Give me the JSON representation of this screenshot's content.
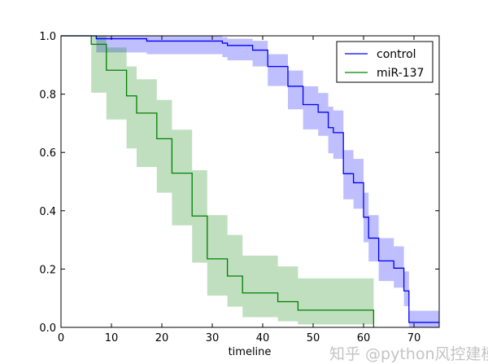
{
  "chart_data": {
    "type": "line",
    "subtype": "kaplan-meier step plot with confidence bands",
    "xlabel": "timeline",
    "ylabel": "",
    "title": "",
    "xlim": [
      0,
      75
    ],
    "ylim": [
      0.0,
      1.0
    ],
    "xticks": [
      "0",
      "10",
      "20",
      "30",
      "40",
      "50",
      "60",
      "70"
    ],
    "yticks": [
      "0.0",
      "0.2",
      "0.4",
      "0.6",
      "0.8",
      "1.0"
    ],
    "grid": false,
    "legend_position": "top-right",
    "series": [
      {
        "name": "control",
        "color": "#0000ff",
        "end_time": 75,
        "steps": [
          [
            0,
            1.0
          ],
          [
            7,
            0.99
          ],
          [
            17,
            0.982
          ],
          [
            32,
            0.975
          ],
          [
            33,
            0.967
          ],
          [
            38,
            0.951
          ],
          [
            41,
            0.895
          ],
          [
            45,
            0.827
          ],
          [
            48,
            0.764
          ],
          [
            51,
            0.738
          ],
          [
            53,
            0.685
          ],
          [
            54,
            0.668
          ],
          [
            56,
            0.527
          ],
          [
            58,
            0.496
          ],
          [
            60,
            0.378
          ],
          [
            61,
            0.306
          ],
          [
            63,
            0.228
          ],
          [
            66,
            0.203
          ],
          [
            68,
            0.125
          ],
          [
            69,
            0.017
          ]
        ],
        "ci": [
          [
            7,
            1.0,
            0.943
          ],
          [
            17,
            1.0,
            0.937
          ],
          [
            32,
            0.995,
            0.927
          ],
          [
            33,
            0.99,
            0.916
          ],
          [
            38,
            0.983,
            0.895
          ],
          [
            41,
            0.937,
            0.828
          ],
          [
            45,
            0.881,
            0.748
          ],
          [
            48,
            0.827,
            0.679
          ],
          [
            51,
            0.804,
            0.657
          ],
          [
            53,
            0.757,
            0.597
          ],
          [
            54,
            0.744,
            0.578
          ],
          [
            56,
            0.608,
            0.439
          ],
          [
            58,
            0.578,
            0.407
          ],
          [
            60,
            0.462,
            0.292
          ],
          [
            61,
            0.385,
            0.226
          ],
          [
            63,
            0.306,
            0.159
          ],
          [
            66,
            0.278,
            0.136
          ],
          [
            68,
            0.192,
            0.073
          ],
          [
            69,
            0.057,
            0.0
          ]
        ]
      },
      {
        "name": "miR-137",
        "color": "#008000",
        "end_time": 62,
        "final_value": 0.0,
        "steps": [
          [
            0,
            1.0
          ],
          [
            6,
            0.971
          ],
          [
            9,
            0.882
          ],
          [
            13,
            0.794
          ],
          [
            15,
            0.735
          ],
          [
            19,
            0.647
          ],
          [
            22,
            0.529
          ],
          [
            26,
            0.382
          ],
          [
            29,
            0.235
          ],
          [
            33,
            0.176
          ],
          [
            36,
            0.118
          ],
          [
            43,
            0.088
          ],
          [
            47,
            0.059
          ]
        ],
        "ci": [
          [
            6,
            1.0,
            0.805
          ],
          [
            9,
            0.96,
            0.713
          ],
          [
            13,
            0.895,
            0.614
          ],
          [
            15,
            0.851,
            0.55
          ],
          [
            19,
            0.78,
            0.462
          ],
          [
            22,
            0.678,
            0.35
          ],
          [
            26,
            0.539,
            0.222
          ],
          [
            29,
            0.385,
            0.109
          ],
          [
            33,
            0.317,
            0.071
          ],
          [
            36,
            0.246,
            0.035
          ],
          [
            43,
            0.209,
            0.021
          ],
          [
            47,
            0.168,
            0.01
          ]
        ]
      }
    ]
  },
  "watermark": "知乎 @python风控建模"
}
